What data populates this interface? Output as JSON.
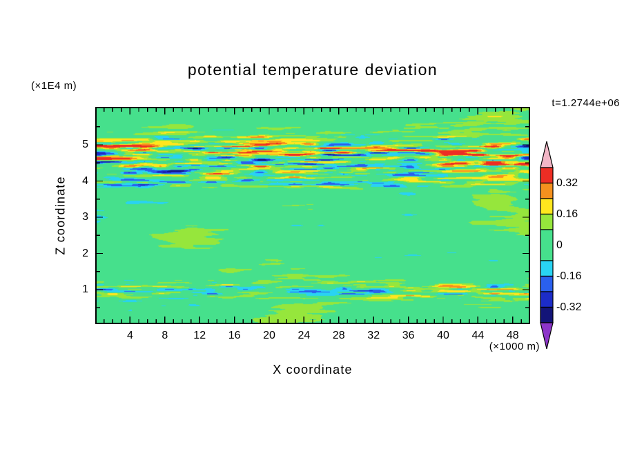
{
  "title": "potential temperature deviation",
  "time_label": "t=1.2744e+06",
  "y_unit_label": "(×1E4 m)",
  "x_unit_label": "(×1000 m)",
  "x_axis": {
    "label": "X coordinate",
    "ticks": [
      4,
      8,
      12,
      16,
      20,
      24,
      28,
      32,
      36,
      40,
      44,
      48
    ]
  },
  "z_axis": {
    "label": "Z coordinate",
    "ticks": [
      1,
      2,
      3,
      4,
      5
    ]
  },
  "colorbar": {
    "labels": [
      {
        "text": "0.32",
        "value": 0.32
      },
      {
        "text": "0.16",
        "value": 0.16
      },
      {
        "text": "0",
        "value": 0
      },
      {
        "text": "-0.16",
        "value": -0.16
      },
      {
        "text": "-0.32",
        "value": -0.32
      }
    ],
    "segments": [
      {
        "color": "#ed2d24",
        "from": 0.4,
        "to": 0.32
      },
      {
        "color": "#f5911e",
        "from": 0.32,
        "to": 0.24
      },
      {
        "color": "#ffe61e",
        "from": 0.24,
        "to": 0.16
      },
      {
        "color": "#96e63c",
        "from": 0.16,
        "to": 0.08
      },
      {
        "color": "#46e08c",
        "from": 0.08,
        "to": -0.08
      },
      {
        "color": "#29d3f2",
        "from": -0.08,
        "to": -0.16
      },
      {
        "color": "#2a60ee",
        "from": -0.16,
        "to": -0.24
      },
      {
        "color": "#1c2cc8",
        "from": -0.24,
        "to": -0.32
      },
      {
        "color": "#131478",
        "from": -0.32,
        "to": -0.4
      }
    ],
    "top_arrow_color": "#f2b6c6",
    "bottom_arrow_color": "#8d35c9"
  },
  "chart_data": {
    "type": "heatmap",
    "title": "potential temperature deviation",
    "xlabel": "X coordinate",
    "x_unit": "(×1000 m)",
    "ylabel": "Z coordinate",
    "y_unit": "(×1E4 m)",
    "time_annotation": "t=1.2744e+06",
    "xlim": [
      0,
      50
    ],
    "ylim": [
      0,
      6.05
    ],
    "x_ticks": [
      4,
      8,
      12,
      16,
      20,
      24,
      28,
      32,
      36,
      40,
      44,
      48
    ],
    "y_ticks": [
      1,
      2,
      3,
      4,
      5
    ],
    "contour_levels": [
      -0.4,
      -0.32,
      -0.24,
      -0.16,
      -0.08,
      0.08,
      0.16,
      0.24,
      0.32,
      0.4
    ],
    "colorbar_tick_labels": [
      "0.32",
      "0.16",
      "0",
      "-0.16",
      "-0.32"
    ],
    "level_colors": [
      "#8d35c9",
      "#131478",
      "#1c2cc8",
      "#2a60ee",
      "#29d3f2",
      "#46e08c",
      "#96e63c",
      "#ffe61e",
      "#f5911e",
      "#ed2d24",
      "#f2b6c6"
    ],
    "field_model": {
      "seed": 11,
      "baseline_amplitude": 0.035,
      "background_noise_amplitude": 0.105,
      "streak_bands": [
        {
          "z_center": 4.7,
          "z_sigma": 0.55,
          "amplitude": 0.5
        },
        {
          "z_center": 4.0,
          "z_sigma": 0.18,
          "amplitude": 0.2
        },
        {
          "z_center": 1.0,
          "z_sigma": 0.28,
          "amplitude": 0.26
        }
      ],
      "description": "near-zero (green) background with horizontally elongated turbulent streaks of alternating sign (red/orange/yellow positive, cyan/blue/navy negative) concentrated near z≈4-5.2 ×1E4 m and a weaker streak band near z≈1 ×1E4 m; scattered yellow-green positive patches elsewhere"
    }
  }
}
